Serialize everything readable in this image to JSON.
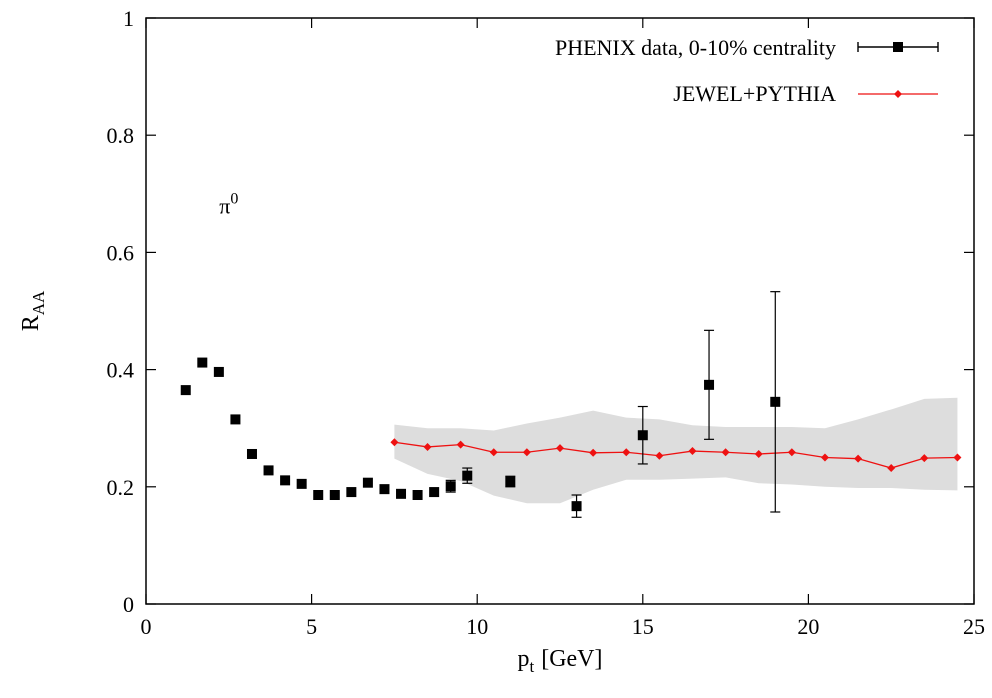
{
  "chart_data": {
    "type": "scatter",
    "title": "",
    "xlabel": "p",
    "xlabel_sub": "t",
    "xlabel_unit": "[GeV]",
    "ylabel": "R",
    "ylabel_sub": "AA",
    "xlim": [
      0,
      25
    ],
    "ylim": [
      0,
      1
    ],
    "xticks": [
      "0",
      "5",
      "10",
      "15",
      "20",
      "25"
    ],
    "yticks": [
      "0",
      "0.2",
      "0.4",
      "0.6",
      "0.8",
      "1"
    ],
    "grid": false,
    "legend_position": "top-right",
    "annotation": {
      "base": "π",
      "sup": "0",
      "x": 2.5,
      "y": 0.68
    },
    "series": [
      {
        "name": "PHENIX data, 0-10% centrality",
        "color": "#000000",
        "marker": "square",
        "points": [
          {
            "x": 1.2,
            "y": 0.365
          },
          {
            "x": 1.7,
            "y": 0.412
          },
          {
            "x": 2.2,
            "y": 0.396
          },
          {
            "x": 2.7,
            "y": 0.315
          },
          {
            "x": 3.2,
            "y": 0.256
          },
          {
            "x": 3.7,
            "y": 0.228
          },
          {
            "x": 4.2,
            "y": 0.211
          },
          {
            "x": 4.7,
            "y": 0.205
          },
          {
            "x": 5.2,
            "y": 0.186
          },
          {
            "x": 5.7,
            "y": 0.186
          },
          {
            "x": 6.2,
            "y": 0.191
          },
          {
            "x": 6.7,
            "y": 0.207
          },
          {
            "x": 7.2,
            "y": 0.196
          },
          {
            "x": 7.7,
            "y": 0.188
          },
          {
            "x": 8.2,
            "y": 0.186
          },
          {
            "x": 8.7,
            "y": 0.191
          },
          {
            "x": 9.2,
            "y": 0.201,
            "err": 0.01
          },
          {
            "x": 9.7,
            "y": 0.219,
            "err": 0.013
          },
          {
            "x": 11.0,
            "y": 0.209,
            "err": 0.009
          },
          {
            "x": 13.0,
            "y": 0.167,
            "err": 0.019
          },
          {
            "x": 15.0,
            "y": 0.288,
            "err": 0.049
          },
          {
            "x": 17.0,
            "y": 0.374,
            "err": 0.093
          },
          {
            "x": 19.0,
            "y": 0.345,
            "err": 0.188
          }
        ]
      },
      {
        "name": "JEWEL+PYTHIA",
        "color": "#ee1111",
        "marker": "diamond",
        "band": {
          "color": "#dddddd",
          "x": [
            7.5,
            8.5,
            9.5,
            10.5,
            11.5,
            12.5,
            13.5,
            14.5,
            15.5,
            16.5,
            17.5,
            18.5,
            19.5,
            20.5,
            21.5,
            22.5,
            23.5,
            24.5
          ],
          "upper": [
            0.306,
            0.3,
            0.3,
            0.296,
            0.308,
            0.318,
            0.33,
            0.318,
            0.315,
            0.305,
            0.302,
            0.302,
            0.302,
            0.3,
            0.315,
            0.332,
            0.35,
            0.352
          ],
          "lower": [
            0.248,
            0.222,
            0.21,
            0.185,
            0.172,
            0.172,
            0.195,
            0.212,
            0.212,
            0.214,
            0.216,
            0.206,
            0.204,
            0.2,
            0.198,
            0.198,
            0.195,
            0.194
          ]
        },
        "points": [
          {
            "x": 7.5,
            "y": 0.276
          },
          {
            "x": 8.5,
            "y": 0.268
          },
          {
            "x": 9.5,
            "y": 0.272
          },
          {
            "x": 10.5,
            "y": 0.259
          },
          {
            "x": 11.5,
            "y": 0.259
          },
          {
            "x": 12.5,
            "y": 0.266
          },
          {
            "x": 13.5,
            "y": 0.258
          },
          {
            "x": 14.5,
            "y": 0.259
          },
          {
            "x": 15.5,
            "y": 0.253
          },
          {
            "x": 16.5,
            "y": 0.261
          },
          {
            "x": 17.5,
            "y": 0.259
          },
          {
            "x": 18.5,
            "y": 0.256
          },
          {
            "x": 19.5,
            "y": 0.259
          },
          {
            "x": 20.5,
            "y": 0.25
          },
          {
            "x": 21.5,
            "y": 0.248
          },
          {
            "x": 22.5,
            "y": 0.232
          },
          {
            "x": 23.5,
            "y": 0.249
          },
          {
            "x": 24.5,
            "y": 0.25
          }
        ]
      }
    ]
  }
}
